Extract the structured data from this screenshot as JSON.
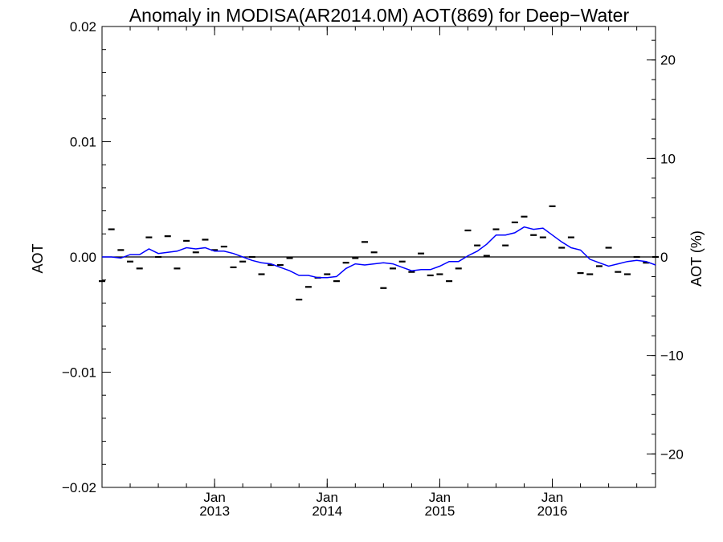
{
  "chart_data": {
    "type": "line",
    "title": "Anomaly in MODISA(AR2014.0M) AOT(869) for Deep−Water",
    "ylabel": "AOT",
    "ylabel_right": "AOT (%)",
    "xlabel": "",
    "x_start": "2012-01",
    "x_end": "2016-12",
    "ylim": [
      -0.02,
      0.02
    ],
    "ylim_right": [
      -23.4,
      23.4
    ],
    "yticks": [
      {
        "value": 0.02,
        "label": "0.02"
      },
      {
        "value": 0.01,
        "label": "0.01"
      },
      {
        "value": 0.0,
        "label": "0.00"
      },
      {
        "value": -0.01,
        "label": "−0.01"
      },
      {
        "value": -0.02,
        "label": "−0.02"
      }
    ],
    "yticks_right": [
      {
        "value": 20,
        "label": "20"
      },
      {
        "value": 10,
        "label": "10"
      },
      {
        "value": 0,
        "label": "0"
      },
      {
        "value": -10,
        "label": "−10"
      },
      {
        "value": -20,
        "label": "−20"
      }
    ],
    "xticks": [
      {
        "date": "2013-01",
        "label_top": "Jan",
        "label_bottom": "2013"
      },
      {
        "date": "2014-01",
        "label_top": "Jan",
        "label_bottom": "2014"
      },
      {
        "date": "2015-01",
        "label_top": "Jan",
        "label_bottom": "2015"
      },
      {
        "date": "2016-01",
        "label_top": "Jan",
        "label_bottom": "2016"
      }
    ],
    "zero_line": true,
    "grid": false,
    "series": [
      {
        "kind": "monthly-markers",
        "color": "#000000",
        "x": [
          "2012-01",
          "2012-02",
          "2012-03",
          "2012-04",
          "2012-05",
          "2012-06",
          "2012-07",
          "2012-08",
          "2012-09",
          "2012-10",
          "2012-11",
          "2012-12",
          "2013-01",
          "2013-02",
          "2013-03",
          "2013-04",
          "2013-05",
          "2013-06",
          "2013-07",
          "2013-08",
          "2013-09",
          "2013-10",
          "2013-11",
          "2013-12",
          "2014-01",
          "2014-02",
          "2014-03",
          "2014-04",
          "2014-05",
          "2014-06",
          "2014-07",
          "2014-08",
          "2014-09",
          "2014-10",
          "2014-11",
          "2014-12",
          "2015-01",
          "2015-02",
          "2015-03",
          "2015-04",
          "2015-05",
          "2015-06",
          "2015-07",
          "2015-08",
          "2015-09",
          "2015-10",
          "2015-11",
          "2015-12",
          "2016-01",
          "2016-02",
          "2016-03",
          "2016-04",
          "2016-05",
          "2016-06",
          "2016-07",
          "2016-08",
          "2016-09",
          "2016-10",
          "2016-11",
          "2016-12"
        ],
        "values": [
          -0.0021,
          0.0024,
          0.0006,
          -0.0004,
          -0.001,
          0.0017,
          0.0,
          0.0018,
          -0.001,
          0.0014,
          0.0004,
          0.0015,
          0.0006,
          0.0009,
          -0.0009,
          -0.0004,
          0.0,
          -0.0015,
          -0.0007,
          -0.0007,
          -0.0001,
          -0.0037,
          -0.0026,
          -0.0018,
          -0.0015,
          -0.0021,
          -0.0005,
          -0.0001,
          0.0013,
          0.0004,
          -0.0027,
          -0.001,
          -0.0004,
          -0.0013,
          0.0003,
          -0.0016,
          -0.0015,
          -0.0021,
          -0.001,
          0.0023,
          0.001,
          0.0001,
          0.0024,
          0.001,
          0.003,
          0.0035,
          0.0019,
          0.0017,
          0.0044,
          0.0008,
          0.0017,
          -0.0014,
          -0.0015,
          -0.0008,
          0.0008,
          -0.0013,
          -0.0015,
          0.0,
          -0.0005,
          0.0
        ]
      },
      {
        "kind": "running-mean",
        "color": "#0000ff",
        "x": [
          "2012-01",
          "2012-02",
          "2012-03",
          "2012-04",
          "2012-05",
          "2012-06",
          "2012-07",
          "2012-08",
          "2012-09",
          "2012-10",
          "2012-11",
          "2012-12",
          "2013-01",
          "2013-02",
          "2013-03",
          "2013-04",
          "2013-05",
          "2013-06",
          "2013-07",
          "2013-08",
          "2013-09",
          "2013-10",
          "2013-11",
          "2013-12",
          "2014-01",
          "2014-02",
          "2014-03",
          "2014-04",
          "2014-05",
          "2014-06",
          "2014-07",
          "2014-08",
          "2014-09",
          "2014-10",
          "2014-11",
          "2014-12",
          "2015-01",
          "2015-02",
          "2015-03",
          "2015-04",
          "2015-05",
          "2015-06",
          "2015-07",
          "2015-08",
          "2015-09",
          "2015-10",
          "2015-11",
          "2015-12",
          "2016-01",
          "2016-02",
          "2016-03",
          "2016-04",
          "2016-05",
          "2016-06",
          "2016-07",
          "2016-08",
          "2016-09",
          "2016-10",
          "2016-11",
          "2016-12"
        ],
        "values": [
          0.0,
          0.0,
          -0.0001,
          0.0002,
          0.0002,
          0.0007,
          0.0003,
          0.0004,
          0.0005,
          0.0008,
          0.0007,
          0.0008,
          0.0005,
          0.0005,
          0.0003,
          0.0,
          -0.0003,
          -0.0005,
          -0.0006,
          -0.0009,
          -0.0012,
          -0.0016,
          -0.0016,
          -0.0018,
          -0.0018,
          -0.0017,
          -0.001,
          -0.0006,
          -0.0007,
          -0.0006,
          -0.0005,
          -0.0006,
          -0.0009,
          -0.0012,
          -0.0011,
          -0.0011,
          -0.0008,
          -0.0004,
          -0.0004,
          0.0001,
          0.0005,
          0.0011,
          0.0019,
          0.0019,
          0.0021,
          0.0026,
          0.0024,
          0.0025,
          0.0019,
          0.0013,
          0.0008,
          0.0006,
          -0.0002,
          -0.0005,
          -0.0008,
          -0.0006,
          -0.0004,
          -0.0003,
          -0.0004,
          -0.0007
        ]
      }
    ]
  }
}
